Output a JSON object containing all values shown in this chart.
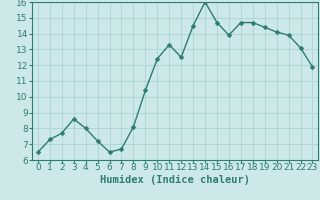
{
  "x": [
    0,
    1,
    2,
    3,
    4,
    5,
    6,
    7,
    8,
    9,
    10,
    11,
    12,
    13,
    14,
    15,
    16,
    17,
    18,
    19,
    20,
    21,
    22,
    23
  ],
  "y": [
    6.5,
    7.3,
    7.7,
    8.6,
    8.0,
    7.2,
    6.5,
    6.7,
    8.1,
    10.4,
    12.4,
    13.3,
    12.5,
    14.5,
    16.0,
    14.7,
    13.9,
    14.7,
    14.7,
    14.4,
    14.1,
    13.9,
    13.1,
    11.9
  ],
  "line_color": "#2e7d6e",
  "marker": "D",
  "marker_size": 2.5,
  "line_width": 1.0,
  "bg_color": "#cce9e7",
  "grid_color": "#aad4d0",
  "xlabel": "Humidex (Indice chaleur)",
  "xlim": [
    -0.5,
    23.5
  ],
  "ylim": [
    6,
    16
  ],
  "yticks": [
    6,
    7,
    8,
    9,
    10,
    11,
    12,
    13,
    14,
    15,
    16
  ],
  "xticks": [
    0,
    1,
    2,
    3,
    4,
    5,
    6,
    7,
    8,
    9,
    10,
    11,
    12,
    13,
    14,
    15,
    16,
    17,
    18,
    19,
    20,
    21,
    22,
    23
  ],
  "xlabel_fontsize": 7.5,
  "tick_fontsize": 6.5
}
